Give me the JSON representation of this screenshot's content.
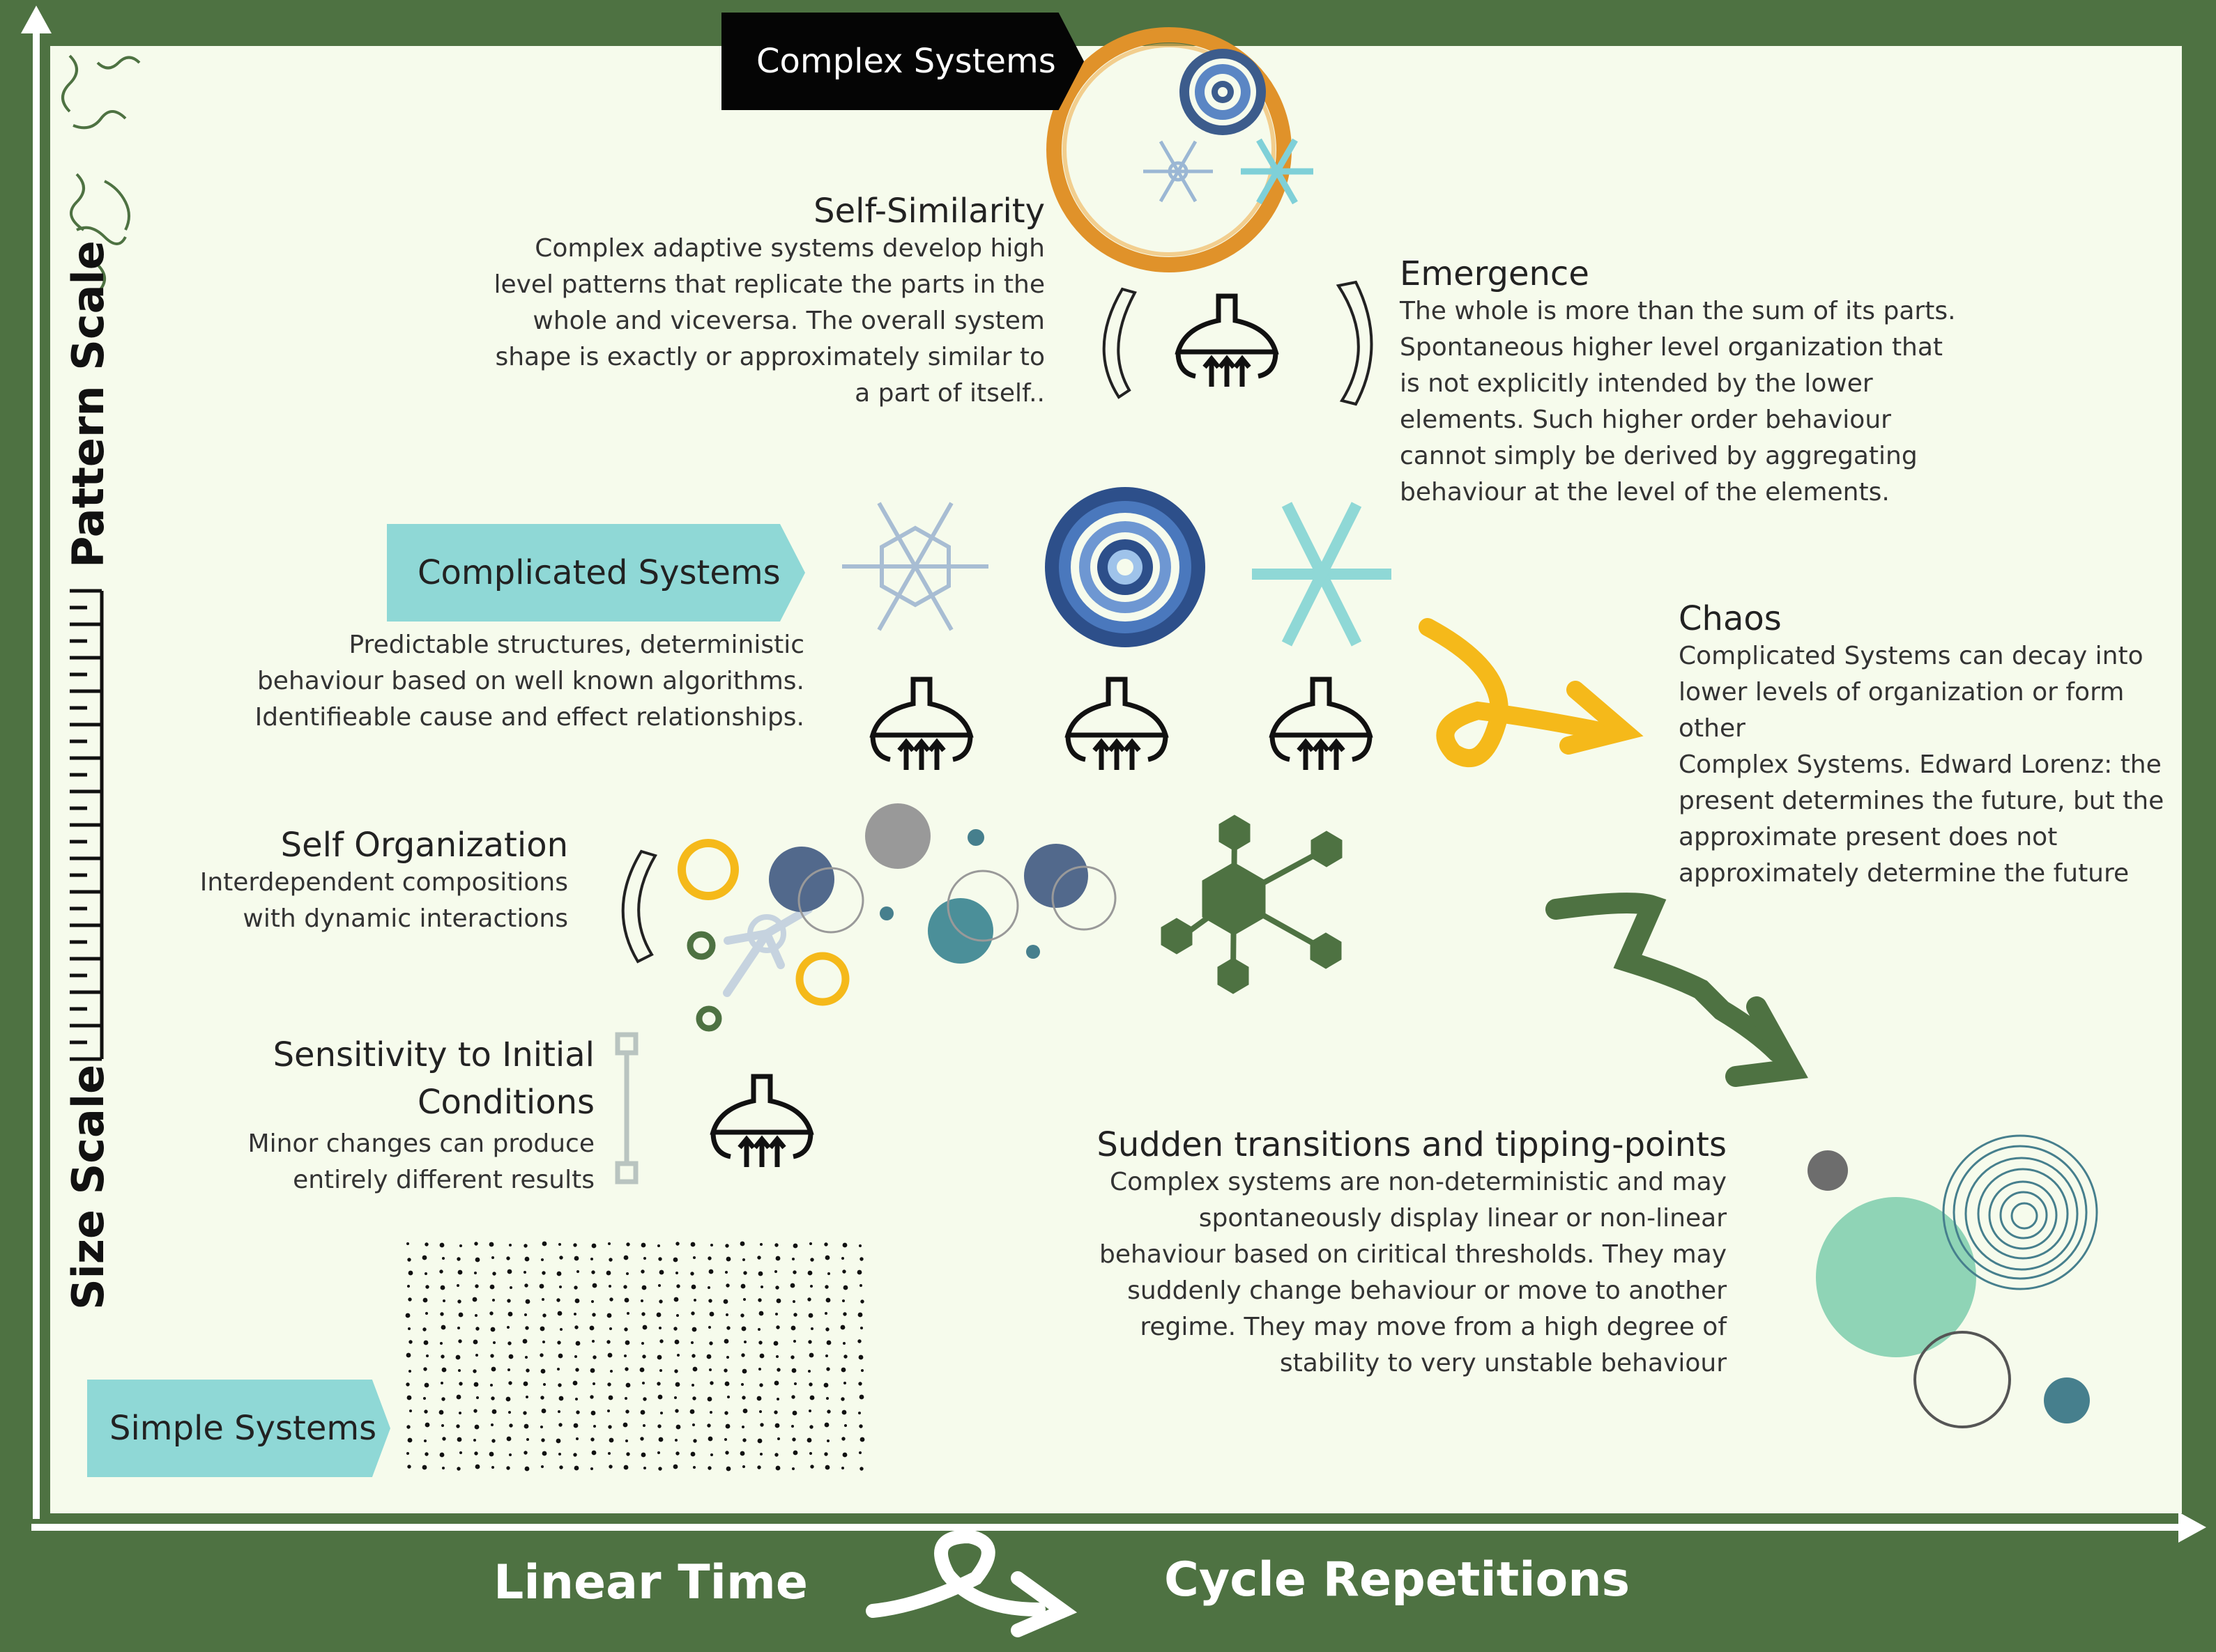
{
  "axes": {
    "x_left": "Linear Time",
    "x_right": "Cycle Repetitions",
    "y_top": "Pattern Scale",
    "y_bottom": "Size Scale"
  },
  "tags": {
    "complex": "Complex Systems",
    "complicated": "Complicated Systems",
    "simple": "Simple Systems"
  },
  "sections": {
    "self_similarity": {
      "title": "Self-Similarity",
      "lines": [
        "Complex adaptive systems develop high",
        "level patterns that replicate the parts in the",
        "whole and viceversa. The overall system",
        "shape is  exactly or approximately similar to",
        "a part of itself.."
      ]
    },
    "emergence": {
      "title": "Emergence",
      "lines": [
        "The whole is more than the sum of its parts.",
        "Spontaneous higher level organization that",
        "is not explicitly intended by the lower",
        "elements. Such higher order behaviour",
        "cannot simply be derived by aggregating",
        "behaviour at the level of the elements."
      ]
    },
    "complicated": {
      "lines": [
        "Predictable structures, deterministic",
        "behaviour based on well known algorithms.",
        "Identifieable cause and effect relationships."
      ]
    },
    "chaos": {
      "title": "Chaos",
      "lines": [
        "Complicated Systems can decay into",
        "lower levels of organization or form other",
        "Complex Systems. Edward Lorenz: the",
        "present determines the future, but the",
        "approximate present does not",
        "approximately determine the future"
      ]
    },
    "self_organization": {
      "title": "Self Organization",
      "lines": [
        "Interdependent compositions",
        "with dynamic interactions"
      ]
    },
    "sensitivity": {
      "title_lines": [
        "Sensitivity to Initial",
        "Conditions"
      ],
      "lines": [
        "Minor changes can produce",
        "entirely different results"
      ]
    },
    "sudden": {
      "title": "Sudden transitions and tipping-points",
      "lines": [
        "Complex systems are non-deterministic and may",
        "spontaneously display linear or non-linear",
        "behaviour based on ciritical thresholds. They may",
        "suddenly change behaviour or move to another",
        "regime. They may move from a high degree of",
        "stability to very unstable behaviour"
      ]
    }
  },
  "icons": [
    "snowflake-icon",
    "mandala-icon",
    "lamp-icon",
    "hexagon-network-icon",
    "chevron-bracket-icon",
    "arrow-scribble-icon",
    "dot-grid-icon",
    "circle-cluster-icon",
    "spiral-icon"
  ],
  "colors": {
    "frame": "#4e7242",
    "panel": "#f6fbec",
    "teal_tag": "#8fd8d6",
    "orange_ring": "#e0922a",
    "yellow": "#f5b91a",
    "navy": "#3c5c8c",
    "dark_green": "#4e7242"
  }
}
